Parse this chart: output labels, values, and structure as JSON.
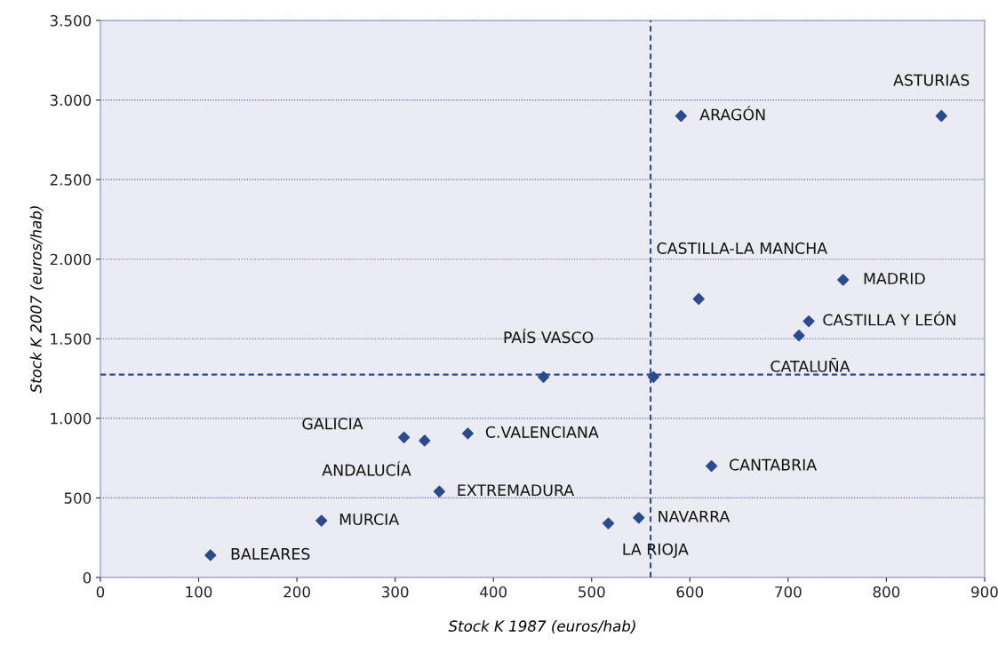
{
  "chart_data": {
    "type": "scatter",
    "xlabel": "Stock K 1987 (euros/hab)",
    "ylabel": "Stock K 2007 (euros/hab)",
    "x": [
      856,
      591,
      609,
      756,
      721,
      711,
      451,
      309,
      330,
      374,
      345,
      622,
      225,
      112,
      548,
      517,
      563
    ],
    "series": [
      {
        "color": "#2a4b8d",
        "values": [
          2900,
          2900,
          1750,
          1870,
          1610,
          1520,
          1260,
          880,
          860,
          905,
          540,
          700,
          357,
          140,
          375,
          340,
          1260
        ]
      }
    ],
    "marker": "diamond",
    "xlim": [
      0,
      900
    ],
    "xticks": [
      0,
      100,
      200,
      300,
      400,
      500,
      600,
      700,
      800,
      900
    ],
    "ylim": [
      0,
      3500
    ],
    "yticks": [
      0,
      {
        "value": 500,
        "label": "500"
      },
      {
        "value": 1000,
        "label": "1.000"
      },
      {
        "value": 1500,
        "label": "1.500"
      },
      {
        "value": 2000,
        "label": "2.000"
      },
      {
        "value": 2500,
        "label": "2.500"
      },
      {
        "value": 3000,
        "label": "3.000"
      },
      {
        "value": 3500,
        "label": "3.500"
      }
    ],
    "grid": "y",
    "ref_lines": [
      {
        "axis": "x",
        "value": 560,
        "color": "#2a4b8d",
        "line_style": "dashed"
      },
      {
        "axis": "y",
        "value": 1275,
        "color": "#2a4b8d",
        "line_style": "dashed"
      }
    ],
    "annotations": [
      {
        "text": "ASTURIAS",
        "x": 856,
        "y": 2900
      },
      {
        "text": "ARAGÓN",
        "x": 591,
        "y": 2900
      },
      {
        "text": "CASTILLA-LA MANCHA",
        "x": 609,
        "y": 1750
      },
      {
        "text": "MADRID",
        "x": 756,
        "y": 1870
      },
      {
        "text": "CASTILLA Y LEÓN",
        "x": 721,
        "y": 1610
      },
      {
        "text": "CATALUÑA",
        "x": 711,
        "y": 1520
      },
      {
        "text": "PAÍS VASCO",
        "x": 451,
        "y": 1260
      },
      {
        "text": "GALICIA",
        "x": 309,
        "y": 880
      },
      {
        "text": "ANDALUCÍA",
        "x": 330,
        "y": 860
      },
      {
        "text": "C.VALENCIANA",
        "x": 374,
        "y": 905
      },
      {
        "text": "EXTREMADURA",
        "x": 345,
        "y": 540
      },
      {
        "text": "CANTABRIA",
        "x": 622,
        "y": 700
      },
      {
        "text": "MURCIA",
        "x": 225,
        "y": 357
      },
      {
        "text": "BALEARES",
        "x": 112,
        "y": 140
      },
      {
        "text": "NAVARRA",
        "x": 548,
        "y": 375
      },
      {
        "text": "LA RIOJA",
        "x": 517,
        "y": 340
      }
    ]
  }
}
